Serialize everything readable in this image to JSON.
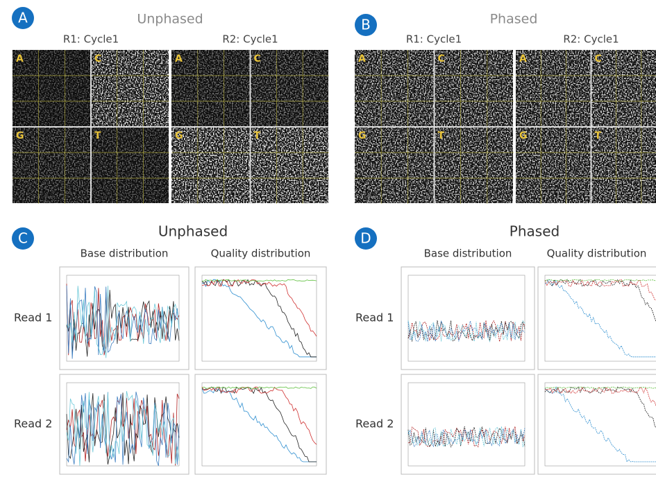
{
  "panels": [
    {
      "label": "A",
      "title": "Unphased",
      "images": [
        {
          "caption": "R1: Cycle1",
          "bases": [
            "A",
            "C",
            "G",
            "T"
          ]
        },
        {
          "caption": "R2: Cycle1",
          "bases": [
            "A",
            "C",
            "G",
            "T"
          ]
        }
      ]
    },
    {
      "label": "B",
      "title": "Phased",
      "images": [
        {
          "caption": "R1: Cycle1",
          "bases": [
            "A",
            "C",
            "G",
            "T"
          ]
        },
        {
          "caption": "R2: Cycle1",
          "bases": [
            "A",
            "C",
            "G",
            "T"
          ]
        }
      ]
    }
  ],
  "chart_panels": [
    {
      "label": "C",
      "title": "Unphased",
      "columns": [
        "Base distribution",
        "Quality distribution"
      ],
      "rows": [
        "Read 1",
        "Read 2"
      ]
    },
    {
      "label": "D",
      "title": "Phased",
      "columns": [
        "Base distribution",
        "Quality distribution"
      ],
      "rows": [
        "Read 1",
        "Read 2"
      ]
    }
  ]
}
